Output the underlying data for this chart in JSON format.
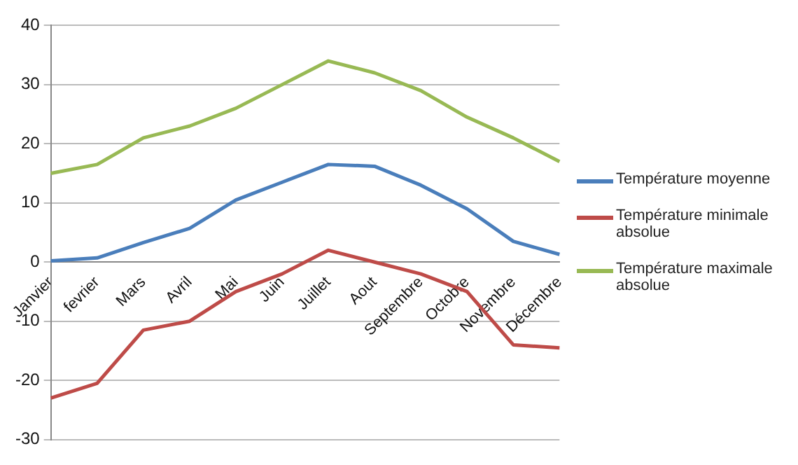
{
  "chart_data": {
    "type": "line",
    "categories": [
      "Janvier",
      "fevrier",
      "Mars",
      "Avril",
      "Mai",
      "Juin",
      "Juillet",
      "Aout",
      "Septembre",
      "Octobre",
      "Novembre",
      "Décembre"
    ],
    "series": [
      {
        "name": "Température moyenne",
        "color": "#4a7ebb",
        "values": [
          0.2,
          0.7,
          3.3,
          5.7,
          10.5,
          13.5,
          16.5,
          16.2,
          13,
          9,
          3.5,
          1.3
        ]
      },
      {
        "name": "Température minimale absolue",
        "color": "#be4b48",
        "values": [
          -23,
          -20.5,
          -11.5,
          -10,
          -5,
          -2,
          2,
          0,
          -2,
          -5,
          -14,
          -14.5
        ]
      },
      {
        "name": "Température maximale absolue",
        "color": "#98b954",
        "values": [
          15,
          16.5,
          21,
          23,
          26,
          30,
          34,
          32,
          29,
          24.5,
          21,
          17
        ]
      }
    ],
    "ylim": [
      -30,
      40
    ],
    "yticks": [
      -30,
      -20,
      -10,
      0,
      10,
      20,
      30,
      40
    ],
    "grid": "y",
    "legend": "right",
    "marker": "none",
    "line_style": "solid"
  }
}
